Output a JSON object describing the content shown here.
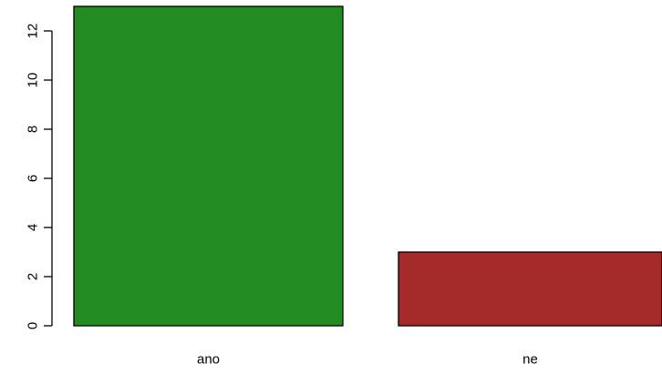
{
  "chart_data": {
    "type": "bar",
    "categories": [
      "ano",
      "ne"
    ],
    "values": [
      13,
      3
    ],
    "colors": [
      "#228b22",
      "#a52a2a"
    ],
    "y_ticks": [
      0,
      2,
      4,
      6,
      8,
      10,
      12
    ],
    "ylim": [
      0,
      13
    ],
    "title": "",
    "xlabel": "",
    "ylabel": "",
    "grid": false
  }
}
